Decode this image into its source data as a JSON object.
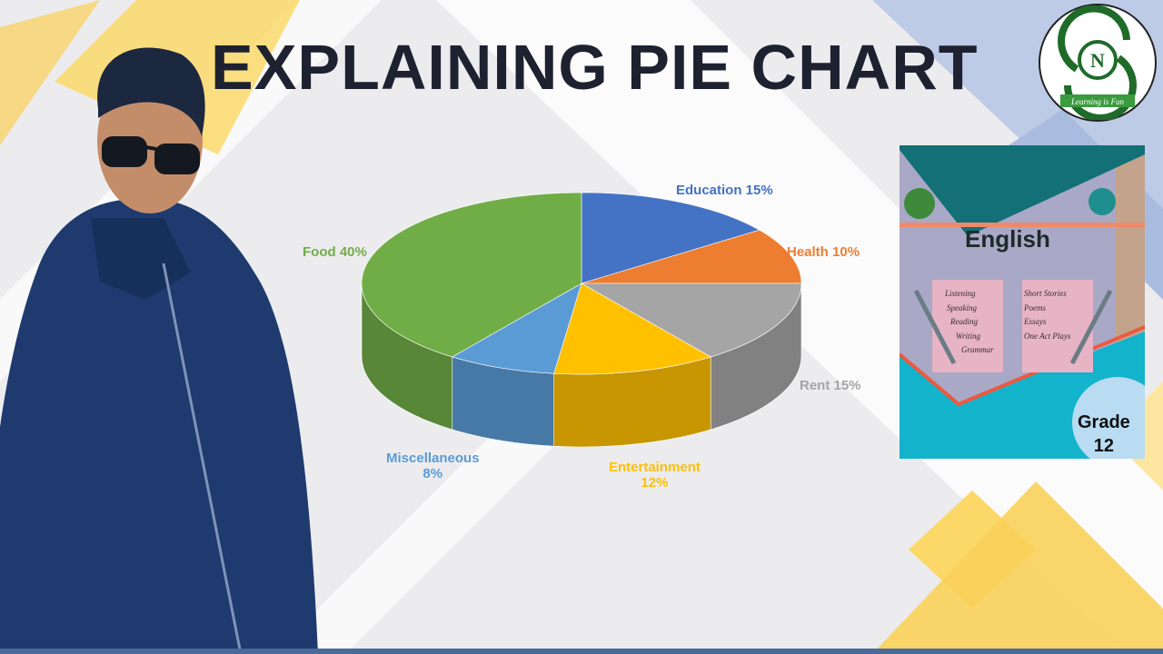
{
  "title": "EXPLAINING PIE CHART",
  "logo": {
    "letter": "N",
    "ribbon_text": "Learning is Fun",
    "color": "#1f6b2a"
  },
  "book": {
    "title": "English",
    "left_list": [
      "Listening",
      "Speaking",
      "Reading",
      "Writing",
      "Grammar"
    ],
    "right_list": [
      "Short Stories",
      "Poems",
      "Essays",
      "One Act Plays"
    ],
    "grade_label": "Grade",
    "grade_number": "12"
  },
  "chart_data": {
    "type": "pie",
    "style": "3d",
    "start_angle": "top, clockwise",
    "slices": [
      {
        "name": "Education",
        "value": 15,
        "label": "Education 15%",
        "color": "#4472C4"
      },
      {
        "name": "Health",
        "value": 10,
        "label": "Health 10%",
        "color": "#ED7D31"
      },
      {
        "name": "Rent",
        "value": 15,
        "label": "Rent 15%",
        "color": "#A5A5A5"
      },
      {
        "name": "Entertainment",
        "value": 12,
        "label_line1": "Entertainment",
        "label_line2": "12%",
        "color": "#FFC000"
      },
      {
        "name": "Miscellaneous",
        "value": 8,
        "label_line1": "Miscellaneous",
        "label_line2": "8%",
        "color": "#5B9BD5"
      },
      {
        "name": "Food",
        "value": 40,
        "label": "Food 40%",
        "color": "#70AD47"
      }
    ]
  }
}
